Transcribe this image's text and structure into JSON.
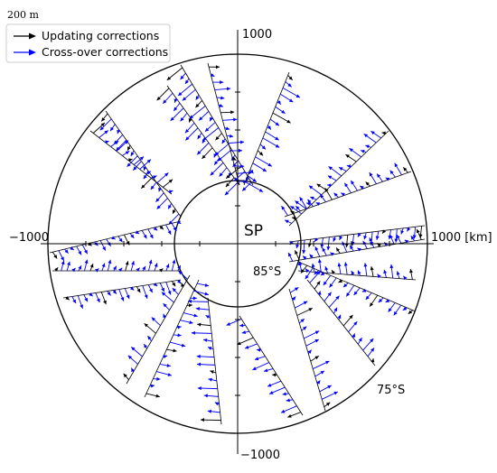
{
  "scale_label": "200 m",
  "legend": {
    "items": [
      {
        "label": "Updating corrections",
        "color": "#000000"
      },
      {
        "label": "Cross-over corrections",
        "color": "#0000ff"
      }
    ]
  },
  "axes": {
    "top_label": "1000",
    "bottom_label": "−1000",
    "left_label": "−1000",
    "right_label": "1000 [km]"
  },
  "center_label": "SP",
  "inner_lat_label": "85°S",
  "outer_lat_label": "75°S",
  "colors": {
    "updating": "#000000",
    "crossover": "#0000ff",
    "circles": "#000000"
  }
}
